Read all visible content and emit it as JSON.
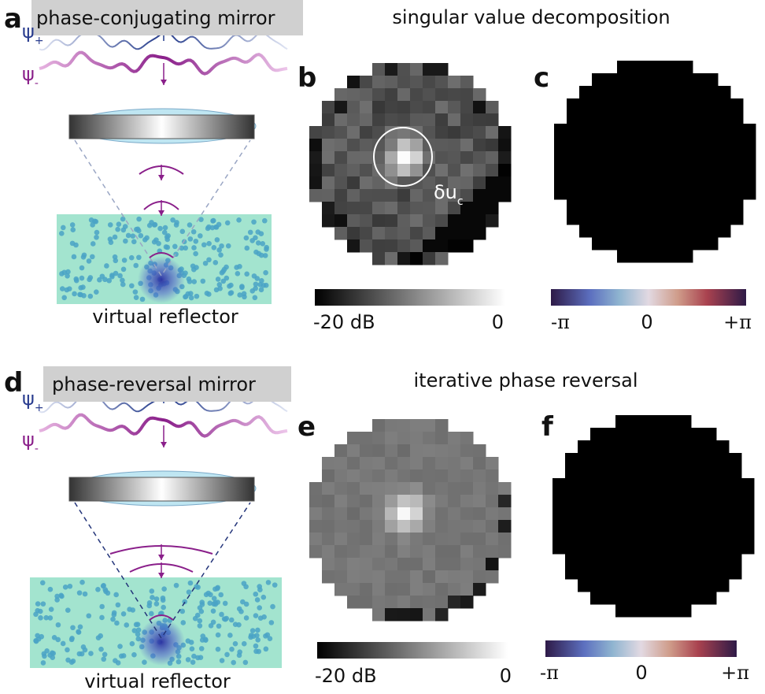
{
  "top": {
    "letter_a": "a",
    "mirror": "phase-conjugating mirror",
    "psi_plus": {
      "symbol": "ψ",
      "sub": "+"
    },
    "psi_minus": {
      "symbol": "ψ",
      "sub": "-"
    },
    "reflector": "virtual reflector",
    "section_title": "singular value decomposition",
    "letter_b": "b",
    "focal_spot": {
      "symbol": "δu",
      "sub": "c"
    },
    "colorbar_b": {
      "min": "-20 dB",
      "max": "0"
    },
    "letter_c": "c",
    "colorbar_c": {
      "min": "-π",
      "mid": "0",
      "max": "+π"
    }
  },
  "bottom": {
    "letter_d": "d",
    "mirror": "phase-reversal mirror",
    "psi_plus": {
      "symbol": "ψ",
      "sub": "+"
    },
    "psi_minus": {
      "symbol": "ψ",
      "sub": "-"
    },
    "reflector": "virtual reflector",
    "section_title": "iterative phase reversal",
    "letter_e": "e",
    "colorbar_e": {
      "min": "-20 dB",
      "max": "0"
    },
    "letter_f": "f",
    "colorbar_f": {
      "min": "-π",
      "mid": "0",
      "max": "+π"
    }
  }
}
